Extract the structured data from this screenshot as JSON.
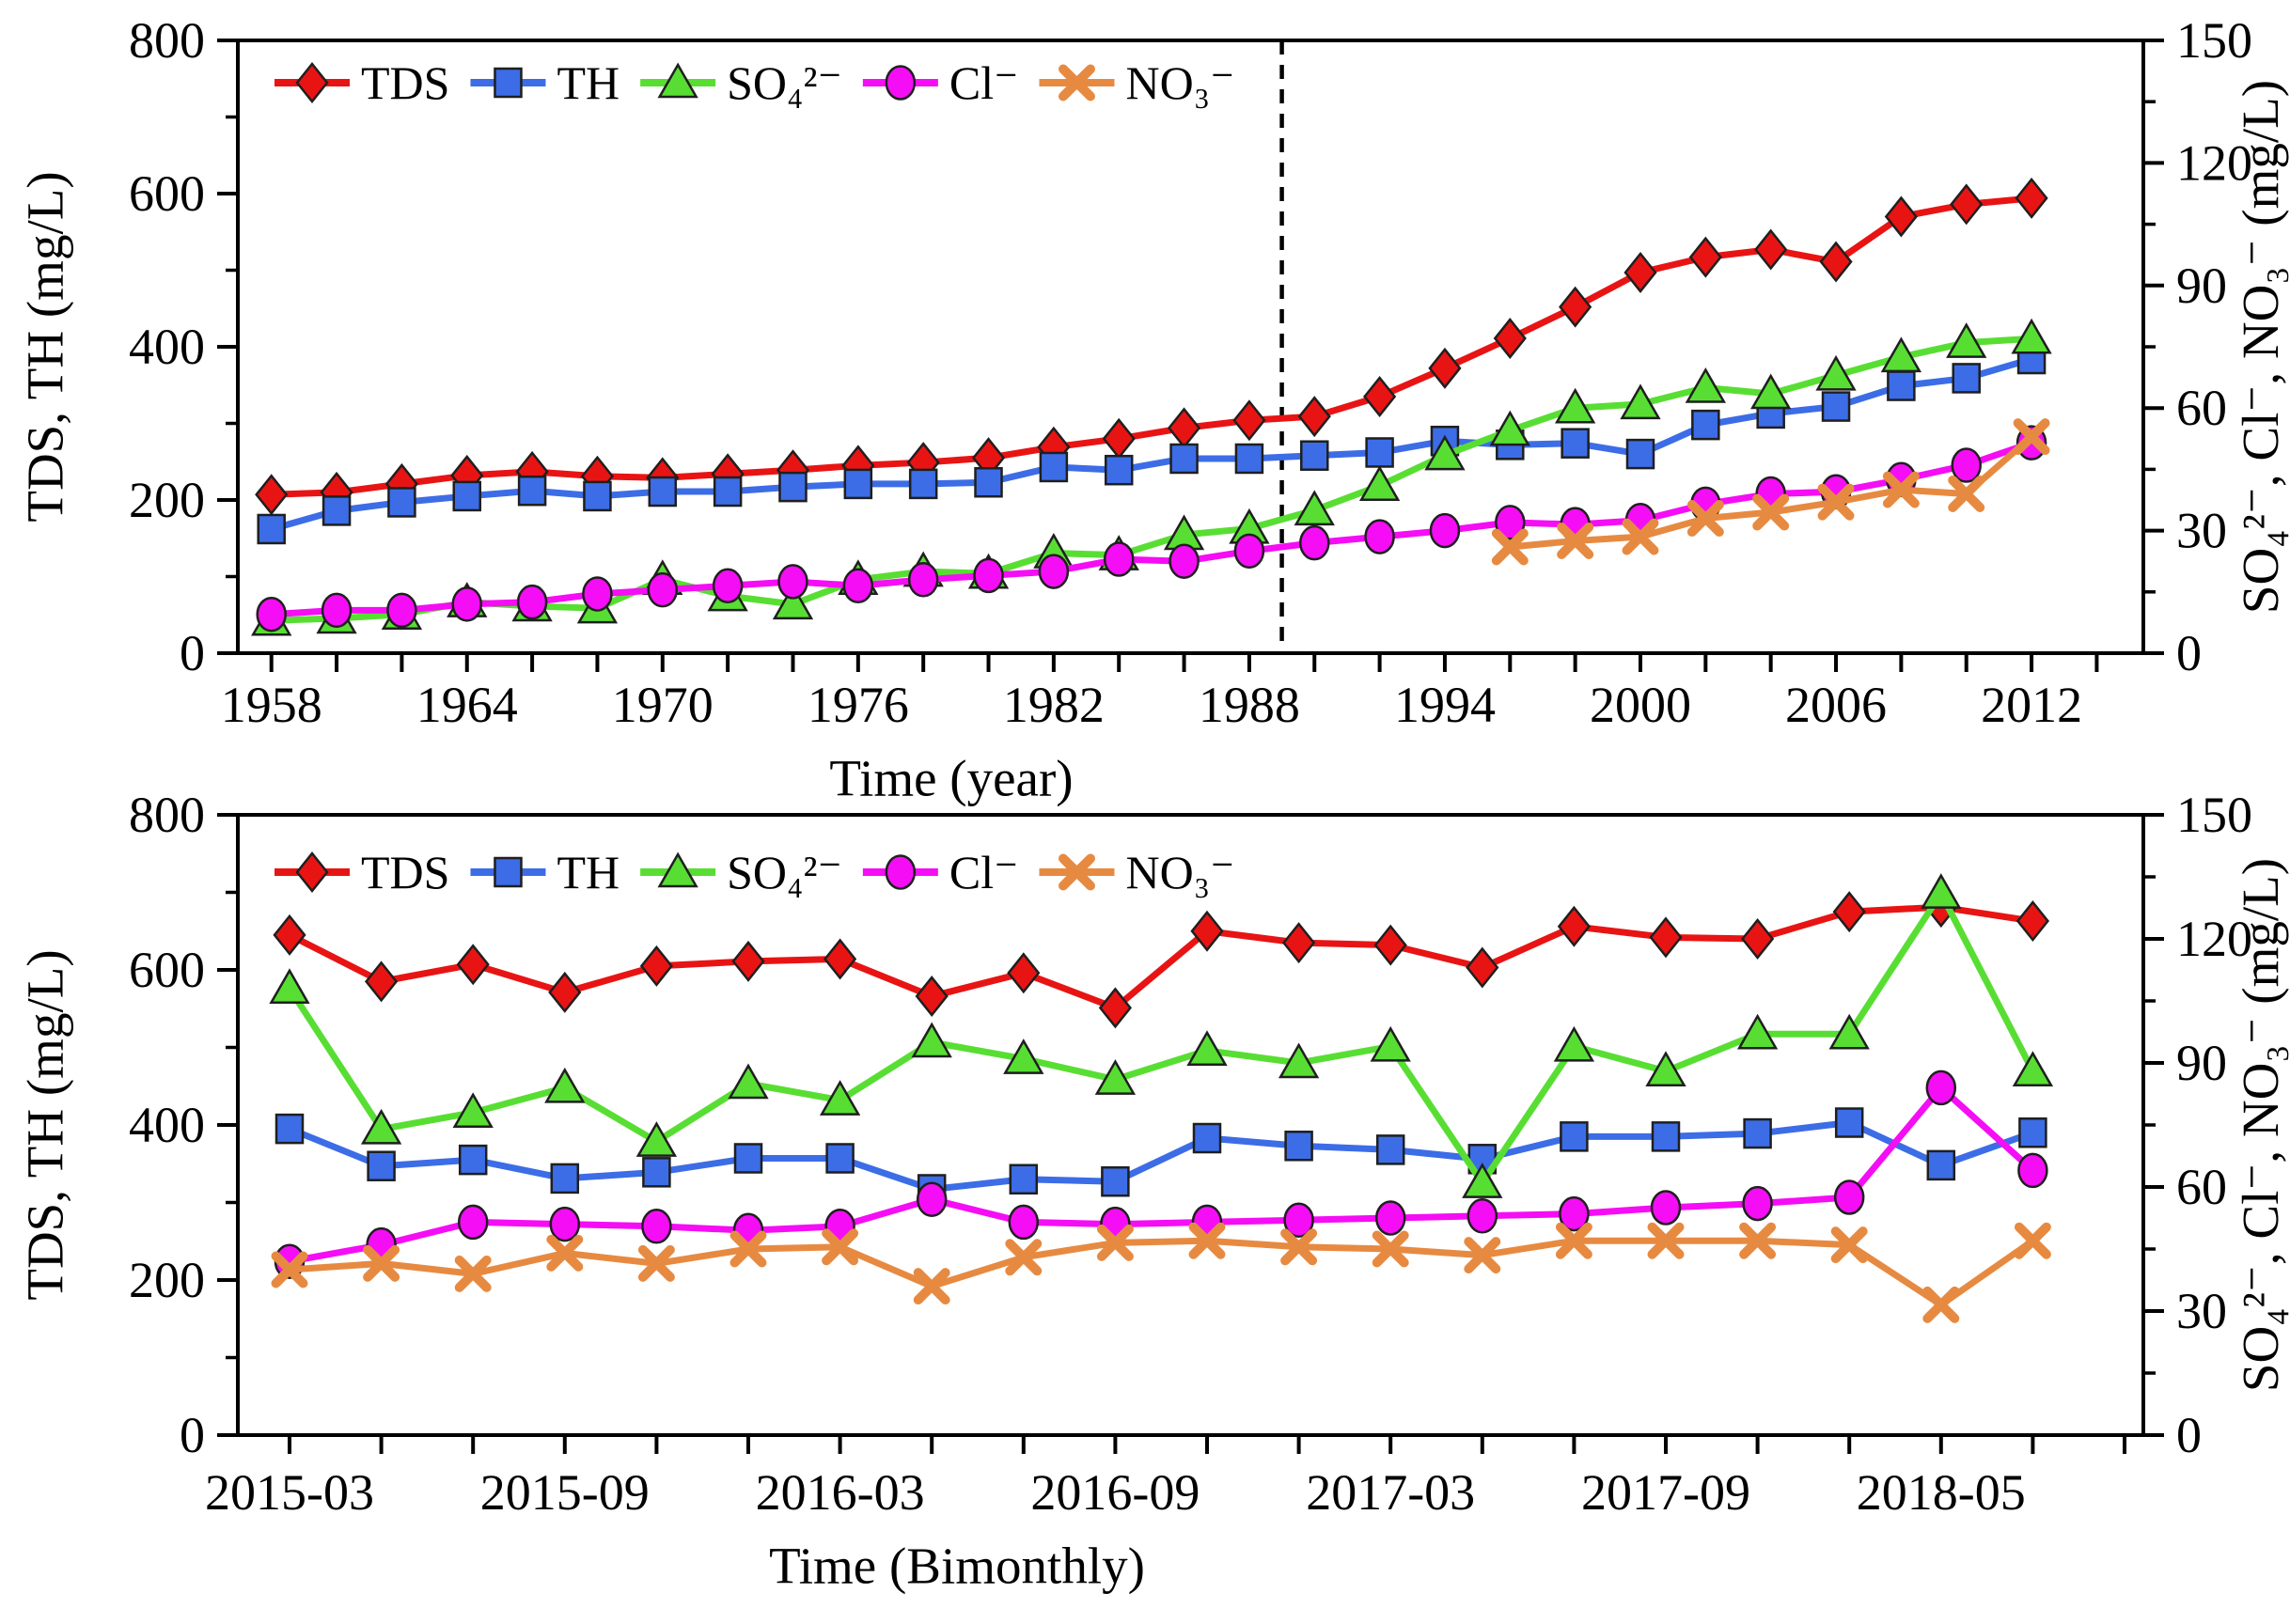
{
  "figure": {
    "background": "#ffffff",
    "text_color": "#000000"
  },
  "chart_data": [
    {
      "id": "annual-panel",
      "type": "line",
      "xlabel": "Time (year)",
      "ylabel_left": "TDS, TH (mg/L)",
      "ylabel_right": "SO₄²⁻, Cl⁻, NO₃⁻ (mg/L)",
      "ylim_left": [
        0,
        800
      ],
      "yticks_left": [
        0,
        200,
        400,
        600,
        800
      ],
      "ylim_right": [
        0,
        150
      ],
      "yticks_right": [
        0,
        30,
        60,
        90,
        120,
        150
      ],
      "xticks": [
        1958,
        1964,
        1970,
        1976,
        1982,
        1988,
        1994,
        2000,
        2006,
        2012
      ],
      "xlim": [
        1956.97,
        2015.43
      ],
      "dashed_vline_year": 1989,
      "legend_position": "top-left-inside",
      "grid": false,
      "series": [
        {
          "name": "TDS",
          "axis": "left",
          "color": "#e81414",
          "marker": "diamond",
          "x": [
            1958,
            1960,
            1962,
            1964,
            1966,
            1968,
            1970,
            1972,
            1974,
            1976,
            1978,
            1980,
            1982,
            1984,
            1986,
            1988,
            1990,
            1992,
            1994,
            1996,
            1998,
            2000,
            2002,
            2004,
            2006,
            2008,
            2010,
            2012
          ],
          "y": [
            207,
            210,
            221,
            232,
            237,
            231,
            229,
            234,
            239,
            245,
            249,
            255,
            269,
            280,
            294,
            304,
            309,
            335,
            372,
            411,
            452,
            497,
            517,
            527,
            511,
            570,
            586,
            594
          ]
        },
        {
          "name": "TH",
          "axis": "left",
          "color": "#3c6de6",
          "marker": "square",
          "x": [
            1958,
            1960,
            1962,
            1964,
            1966,
            1968,
            1970,
            1972,
            1974,
            1976,
            1978,
            1980,
            1982,
            1984,
            1986,
            1988,
            1990,
            1992,
            1994,
            1996,
            1998,
            2000,
            2002,
            2004,
            2006,
            2008,
            2010,
            2012
          ],
          "y": [
            162,
            186,
            197,
            205,
            212,
            205,
            211,
            211,
            217,
            221,
            221,
            223,
            243,
            239,
            254,
            254,
            258,
            262,
            277,
            272,
            274,
            260,
            298,
            313,
            322,
            349,
            359,
            384
          ]
        },
        {
          "name": "SO₄²⁻",
          "axis": "right",
          "color": "#58de33",
          "marker": "triangle",
          "x": [
            1958,
            1960,
            1962,
            1964,
            1966,
            1968,
            1970,
            1972,
            1974,
            1976,
            1978,
            1980,
            1982,
            1984,
            1986,
            1988,
            1990,
            1992,
            1994,
            1996,
            1998,
            2000,
            2002,
            2004,
            2006,
            2008,
            2010,
            2012
          ],
          "y": [
            8,
            8.5,
            9.5,
            12.5,
            11.5,
            11,
            18,
            14,
            12,
            18,
            20,
            19.5,
            24.5,
            24,
            29,
            30.5,
            35,
            41,
            48.5,
            54.5,
            60,
            61,
            65,
            63.5,
            68,
            72.5,
            76,
            77
          ]
        },
        {
          "name": "Cl⁻",
          "axis": "right",
          "color": "#f50df5",
          "marker": "circle",
          "x": [
            1958,
            1960,
            1962,
            1964,
            1966,
            1968,
            1970,
            1972,
            1974,
            1976,
            1978,
            1980,
            1982,
            1984,
            1986,
            1988,
            1990,
            1992,
            1994,
            1996,
            1998,
            2000,
            2002,
            2004,
            2006,
            2008,
            2010,
            2012
          ],
          "y": [
            9.5,
            10.5,
            10.5,
            12,
            12.5,
            14.5,
            15.5,
            16.5,
            17.5,
            16.5,
            18,
            19,
            20,
            23,
            22.5,
            25,
            27,
            28.5,
            30,
            32,
            31.5,
            32.5,
            36.5,
            39,
            39.5,
            42.5,
            46,
            51.5
          ]
        },
        {
          "name": "NO₃⁻",
          "axis": "right",
          "color": "#e78a41",
          "marker": "x",
          "x": [
            1996,
            1998,
            2000,
            2002,
            2004,
            2006,
            2008,
            2010,
            2012
          ],
          "y": [
            26,
            27.5,
            28.5,
            33,
            34.5,
            37,
            40,
            39,
            53
          ]
        }
      ]
    },
    {
      "id": "bimonthly-panel",
      "type": "line",
      "xlabel": "Time (Bimonthly)",
      "ylabel_left": "TDS, TH (mg/L)",
      "ylabel_right": "SO₄²⁻, Cl⁻, NO₃⁻ (mg/L)",
      "ylim_left": [
        0,
        800
      ],
      "yticks_left": [
        0,
        200,
        400,
        600,
        800
      ],
      "ylim_right": [
        0,
        150
      ],
      "yticks_right": [
        0,
        30,
        60,
        90,
        120,
        150
      ],
      "xtick_positions": [
        0,
        3,
        6,
        9,
        12,
        15,
        18
      ],
      "xtick_labels": [
        "2015-03",
        "2015-09",
        "2016-03",
        "2016-09",
        "2017-03",
        "2017-09",
        "2018-05"
      ],
      "n_points": 20,
      "legend_position": "top-left-inside",
      "grid": false,
      "series": [
        {
          "name": "TDS",
          "axis": "left",
          "color": "#e81414",
          "marker": "diamond",
          "x": [
            0,
            1,
            2,
            3,
            4,
            5,
            6,
            7,
            8,
            9,
            10,
            11,
            12,
            13,
            14,
            15,
            16,
            17,
            18,
            19
          ],
          "y": [
            645,
            585,
            607,
            571,
            605,
            611,
            614,
            566,
            596,
            551,
            650,
            635,
            632,
            603,
            656,
            642,
            640,
            675,
            681,
            663
          ]
        },
        {
          "name": "TH",
          "axis": "left",
          "color": "#3c6de6",
          "marker": "square",
          "x": [
            0,
            1,
            2,
            3,
            4,
            5,
            6,
            7,
            8,
            9,
            10,
            11,
            12,
            13,
            14,
            15,
            16,
            17,
            18,
            19
          ],
          "y": [
            395,
            347,
            355,
            331,
            339,
            357,
            357,
            317,
            330,
            327,
            383,
            373,
            368,
            356,
            385,
            385,
            389,
            403,
            348,
            390
          ]
        },
        {
          "name": "SO₄²⁻",
          "axis": "right",
          "color": "#58de33",
          "marker": "triangle",
          "x": [
            0,
            1,
            2,
            3,
            4,
            5,
            6,
            7,
            8,
            9,
            10,
            11,
            12,
            13,
            14,
            15,
            16,
            17,
            18,
            19
          ],
          "y": [
            108,
            74,
            78,
            84,
            71,
            85,
            81,
            95,
            91,
            86,
            93,
            90,
            94,
            61,
            94,
            88,
            97,
            97,
            131,
            88
          ]
        },
        {
          "name": "Cl⁻",
          "axis": "right",
          "color": "#f50df5",
          "marker": "circle",
          "x": [
            0,
            1,
            2,
            3,
            4,
            5,
            6,
            7,
            8,
            9,
            10,
            11,
            12,
            13,
            14,
            15,
            16,
            17,
            18,
            19
          ],
          "y": [
            42,
            46,
            51.5,
            51,
            50.5,
            49.5,
            50.5,
            57,
            51.5,
            51,
            51.5,
            52,
            52.5,
            53,
            53.5,
            55,
            56,
            57.5,
            84,
            64
          ]
        },
        {
          "name": "NO₃⁻",
          "axis": "right",
          "color": "#e78a41",
          "marker": "x",
          "x": [
            0,
            1,
            2,
            3,
            4,
            5,
            6,
            7,
            8,
            9,
            10,
            11,
            12,
            13,
            14,
            15,
            16,
            17,
            18,
            19
          ],
          "y": [
            40,
            41.5,
            39,
            44,
            41.5,
            45,
            45.5,
            36,
            43,
            46.5,
            47,
            45.5,
            45,
            43.5,
            47,
            47,
            47,
            46,
            31.5,
            47
          ]
        }
      ]
    }
  ]
}
